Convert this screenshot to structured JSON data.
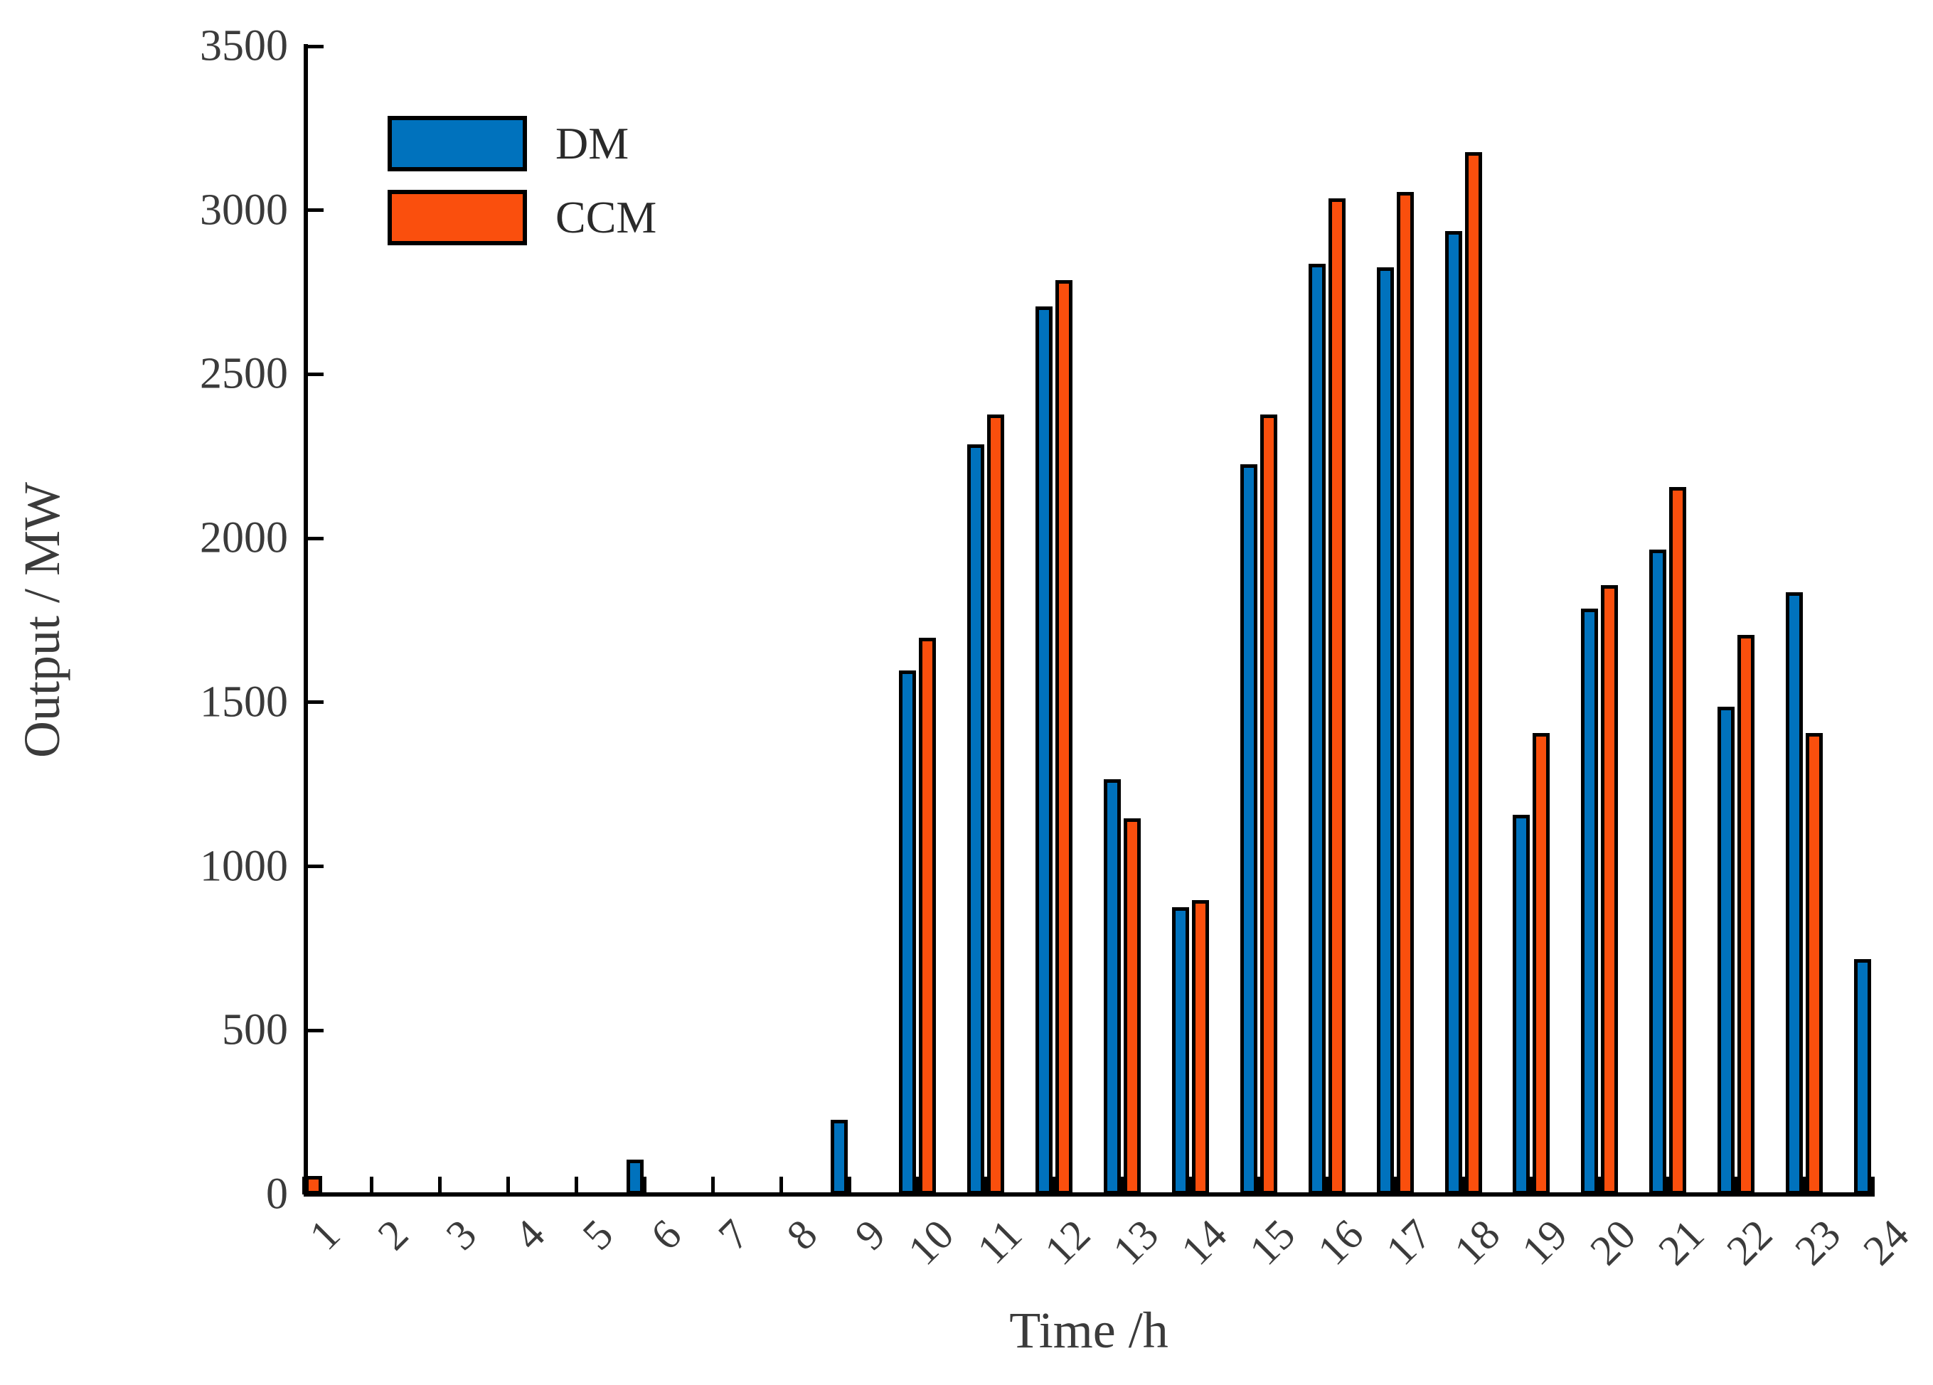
{
  "figure": {
    "background": "#ffffff",
    "text_color": "#3b3b3b",
    "axis_color": "#000000"
  },
  "chart_data": {
    "type": "bar",
    "title": "",
    "xlabel": "Time /h",
    "ylabel": "Output / MW",
    "categories": [
      1,
      2,
      3,
      4,
      5,
      6,
      7,
      8,
      9,
      10,
      11,
      12,
      13,
      14,
      15,
      16,
      17,
      18,
      19,
      20,
      21,
      22,
      23,
      24
    ],
    "series": [
      {
        "name": "DM",
        "color": "#0072BD",
        "values": [
          0,
          0,
          0,
          0,
          0,
          100,
          0,
          0,
          220,
          1590,
          2280,
          2700,
          1260,
          870,
          2220,
          2830,
          2820,
          2930,
          1150,
          1780,
          1960,
          1480,
          1830,
          710
        ]
      },
      {
        "name": "CCM",
        "color": "#FA4F0D",
        "values": [
          50,
          0,
          0,
          0,
          0,
          0,
          0,
          0,
          0,
          1690,
          2370,
          2780,
          1140,
          890,
          2370,
          3030,
          3050,
          3170,
          1400,
          1850,
          2150,
          1700,
          1400,
          0
        ]
      }
    ],
    "ylim": [
      0,
      3500
    ],
    "ytick_step": 500,
    "yticks": [
      "0",
      "500",
      "1000",
      "1500",
      "2000",
      "2500",
      "3000",
      "3500"
    ],
    "xticks": [
      "1",
      "2",
      "3",
      "4",
      "5",
      "6",
      "7",
      "8",
      "9",
      "10",
      "11",
      "12",
      "13",
      "14",
      "15",
      "16",
      "17",
      "18",
      "19",
      "20",
      "21",
      "22",
      "23",
      "24"
    ],
    "grid": false,
    "legend_position": "top-left-inside",
    "bar_edge_color": "#000000",
    "xtick_label_rotation": 45
  }
}
